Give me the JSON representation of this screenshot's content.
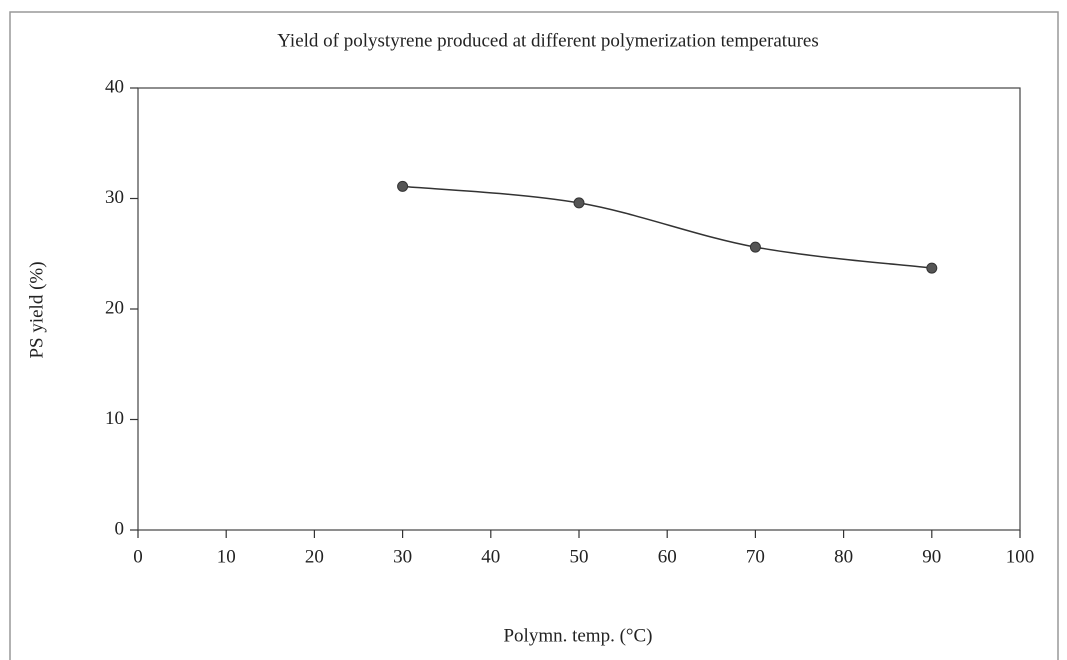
{
  "chart_data": {
    "type": "line",
    "title": "Yield of polystyrene produced at different polymerization temperatures",
    "x_label": "Polymn. temp. (°C)",
    "y_label": "PS yield (%)",
    "x": [
      30,
      50,
      70,
      90
    ],
    "series": [
      {
        "name": "PS yield",
        "color": "#333333",
        "values": [
          31.1,
          29.6,
          25.6,
          23.7
        ]
      }
    ],
    "xlim": [
      0,
      100
    ],
    "xticks": [
      0,
      10,
      20,
      30,
      40,
      50,
      60,
      70,
      80,
      90,
      100
    ],
    "ylim": [
      0,
      40
    ],
    "yticks": [
      0,
      10,
      20,
      30,
      40
    ],
    "grid": false,
    "smooth": true
  }
}
